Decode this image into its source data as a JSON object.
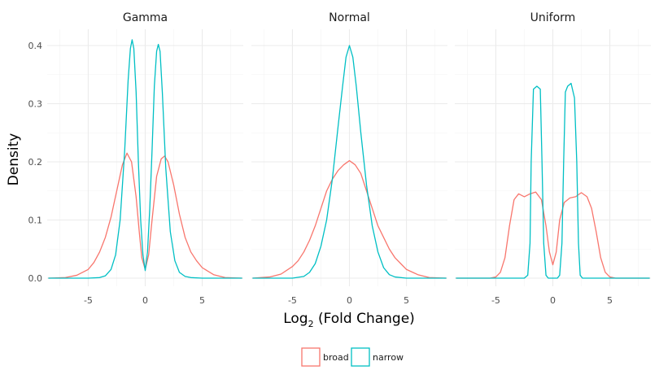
{
  "chart_data": {
    "type": "line",
    "subtype": "density",
    "xlabel_prefix": "Log",
    "xlabel_sub": "2",
    "xlabel_suffix": " (Fold Change)",
    "ylabel": "Density",
    "xlim": [
      -8.6,
      8.6
    ],
    "ylim": [
      0,
      0.43
    ],
    "xticks": [
      -5,
      0,
      5
    ],
    "xtick_labels": [
      "-5",
      "0",
      "5"
    ],
    "yticks": [
      0,
      0.1,
      0.2,
      0.3,
      0.4
    ],
    "ytick_labels": [
      "0.0",
      "0.1",
      "0.2",
      "0.3",
      "0.4"
    ],
    "grid": true,
    "legend_position": "bottom",
    "legend": [
      {
        "label": "broad",
        "color": "#F8766D"
      },
      {
        "label": "narrow",
        "color": "#00BFC4"
      }
    ],
    "panels": [
      {
        "title": "Gamma",
        "series": [
          {
            "name": "broad",
            "color": "#F8766D",
            "x": [
              -8.5,
              -7,
              -6,
              -5,
              -4.5,
              -4,
              -3.5,
              -3,
              -2.5,
              -2,
              -1.6,
              -1.2,
              -0.8,
              -0.5,
              -0.3,
              0,
              0.3,
              0.6,
              1,
              1.4,
              1.7,
              2,
              2.5,
              3,
              3.5,
              4,
              4.5,
              5,
              6,
              7,
              8.5
            ],
            "y": [
              0,
              0.001,
              0.005,
              0.015,
              0.027,
              0.045,
              0.07,
              0.105,
              0.15,
              0.195,
              0.215,
              0.2,
              0.14,
              0.075,
              0.035,
              0.015,
              0.04,
              0.1,
              0.175,
              0.205,
              0.21,
              0.2,
              0.16,
              0.11,
              0.07,
              0.045,
              0.03,
              0.018,
              0.006,
              0.001,
              0
            ]
          },
          {
            "name": "narrow",
            "color": "#00BFC4",
            "x": [
              -8.5,
              -5,
              -4,
              -3.5,
              -3,
              -2.6,
              -2.2,
              -1.8,
              -1.5,
              -1.3,
              -1.15,
              -1,
              -0.8,
              -0.6,
              -0.4,
              -0.2,
              0,
              0.2,
              0.4,
              0.6,
              0.8,
              1,
              1.15,
              1.3,
              1.5,
              1.8,
              2.2,
              2.6,
              3,
              3.5,
              4,
              5,
              8.5
            ],
            "y": [
              0,
              0,
              0.001,
              0.004,
              0.015,
              0.04,
              0.1,
              0.22,
              0.34,
              0.395,
              0.41,
              0.395,
              0.32,
              0.2,
              0.1,
              0.04,
              0.013,
              0.045,
              0.12,
              0.22,
              0.33,
              0.39,
              0.402,
              0.39,
              0.32,
              0.19,
              0.08,
              0.03,
              0.01,
              0.003,
              0.001,
              0,
              0
            ]
          }
        ]
      },
      {
        "title": "Normal",
        "series": [
          {
            "name": "broad",
            "color": "#F8766D",
            "x": [
              -8.5,
              -7,
              -6,
              -5,
              -4.5,
              -4,
              -3.5,
              -3,
              -2.5,
              -2,
              -1.5,
              -1,
              -0.5,
              0,
              0.5,
              1,
              1.5,
              2,
              2.5,
              3,
              3.5,
              4,
              4.5,
              5,
              6,
              7,
              8.5
            ],
            "y": [
              0,
              0.002,
              0.007,
              0.02,
              0.03,
              0.045,
              0.065,
              0.09,
              0.12,
              0.15,
              0.17,
              0.185,
              0.195,
              0.202,
              0.195,
              0.18,
              0.15,
              0.12,
              0.09,
              0.07,
              0.05,
              0.035,
              0.025,
              0.015,
              0.006,
              0.001,
              0
            ]
          },
          {
            "name": "narrow",
            "color": "#00BFC4",
            "x": [
              -8.5,
              -5,
              -4,
              -3.5,
              -3,
              -2.5,
              -2,
              -1.5,
              -1,
              -0.6,
              -0.3,
              0,
              0.3,
              0.6,
              1,
              1.5,
              2,
              2.5,
              3,
              3.5,
              4,
              5,
              8.5
            ],
            "y": [
              0,
              0,
              0.003,
              0.01,
              0.025,
              0.055,
              0.1,
              0.17,
              0.26,
              0.33,
              0.38,
              0.4,
              0.38,
              0.33,
              0.25,
              0.16,
              0.09,
              0.045,
              0.018,
              0.006,
              0.002,
              0,
              0
            ]
          }
        ]
      },
      {
        "title": "Uniform",
        "series": [
          {
            "name": "broad",
            "color": "#F8766D",
            "x": [
              -8.5,
              -5.5,
              -5,
              -4.6,
              -4.2,
              -3.8,
              -3.4,
              -3,
              -2.5,
              -2,
              -1.5,
              -1,
              -0.6,
              -0.3,
              0,
              0.3,
              0.6,
              1,
              1.5,
              2,
              2.5,
              3,
              3.4,
              3.8,
              4.2,
              4.6,
              5,
              5.5,
              8.5
            ],
            "y": [
              0,
              0,
              0.002,
              0.01,
              0.035,
              0.09,
              0.135,
              0.145,
              0.14,
              0.145,
              0.148,
              0.135,
              0.09,
              0.045,
              0.023,
              0.045,
              0.1,
              0.13,
              0.138,
              0.14,
              0.147,
              0.14,
              0.12,
              0.08,
              0.035,
              0.01,
              0.002,
              0,
              0
            ]
          },
          {
            "name": "narrow",
            "color": "#00BFC4",
            "x": [
              -8.5,
              -2.5,
              -2.2,
              -2,
              -1.9,
              -1.7,
              -1.4,
              -1.1,
              -0.95,
              -0.8,
              -0.6,
              -0.4,
              -0.2,
              0,
              0.2,
              0.4,
              0.6,
              0.8,
              0.95,
              1.1,
              1.3,
              1.6,
              1.9,
              2.1,
              2.25,
              2.4,
              2.6,
              8.5
            ],
            "y": [
              0,
              0,
              0.005,
              0.06,
              0.2,
              0.325,
              0.33,
              0.325,
              0.2,
              0.06,
              0.005,
              0,
              0,
              0,
              0,
              0,
              0.005,
              0.06,
              0.2,
              0.32,
              0.33,
              0.335,
              0.31,
              0.2,
              0.06,
              0.005,
              0,
              0
            ]
          }
        ]
      }
    ]
  }
}
